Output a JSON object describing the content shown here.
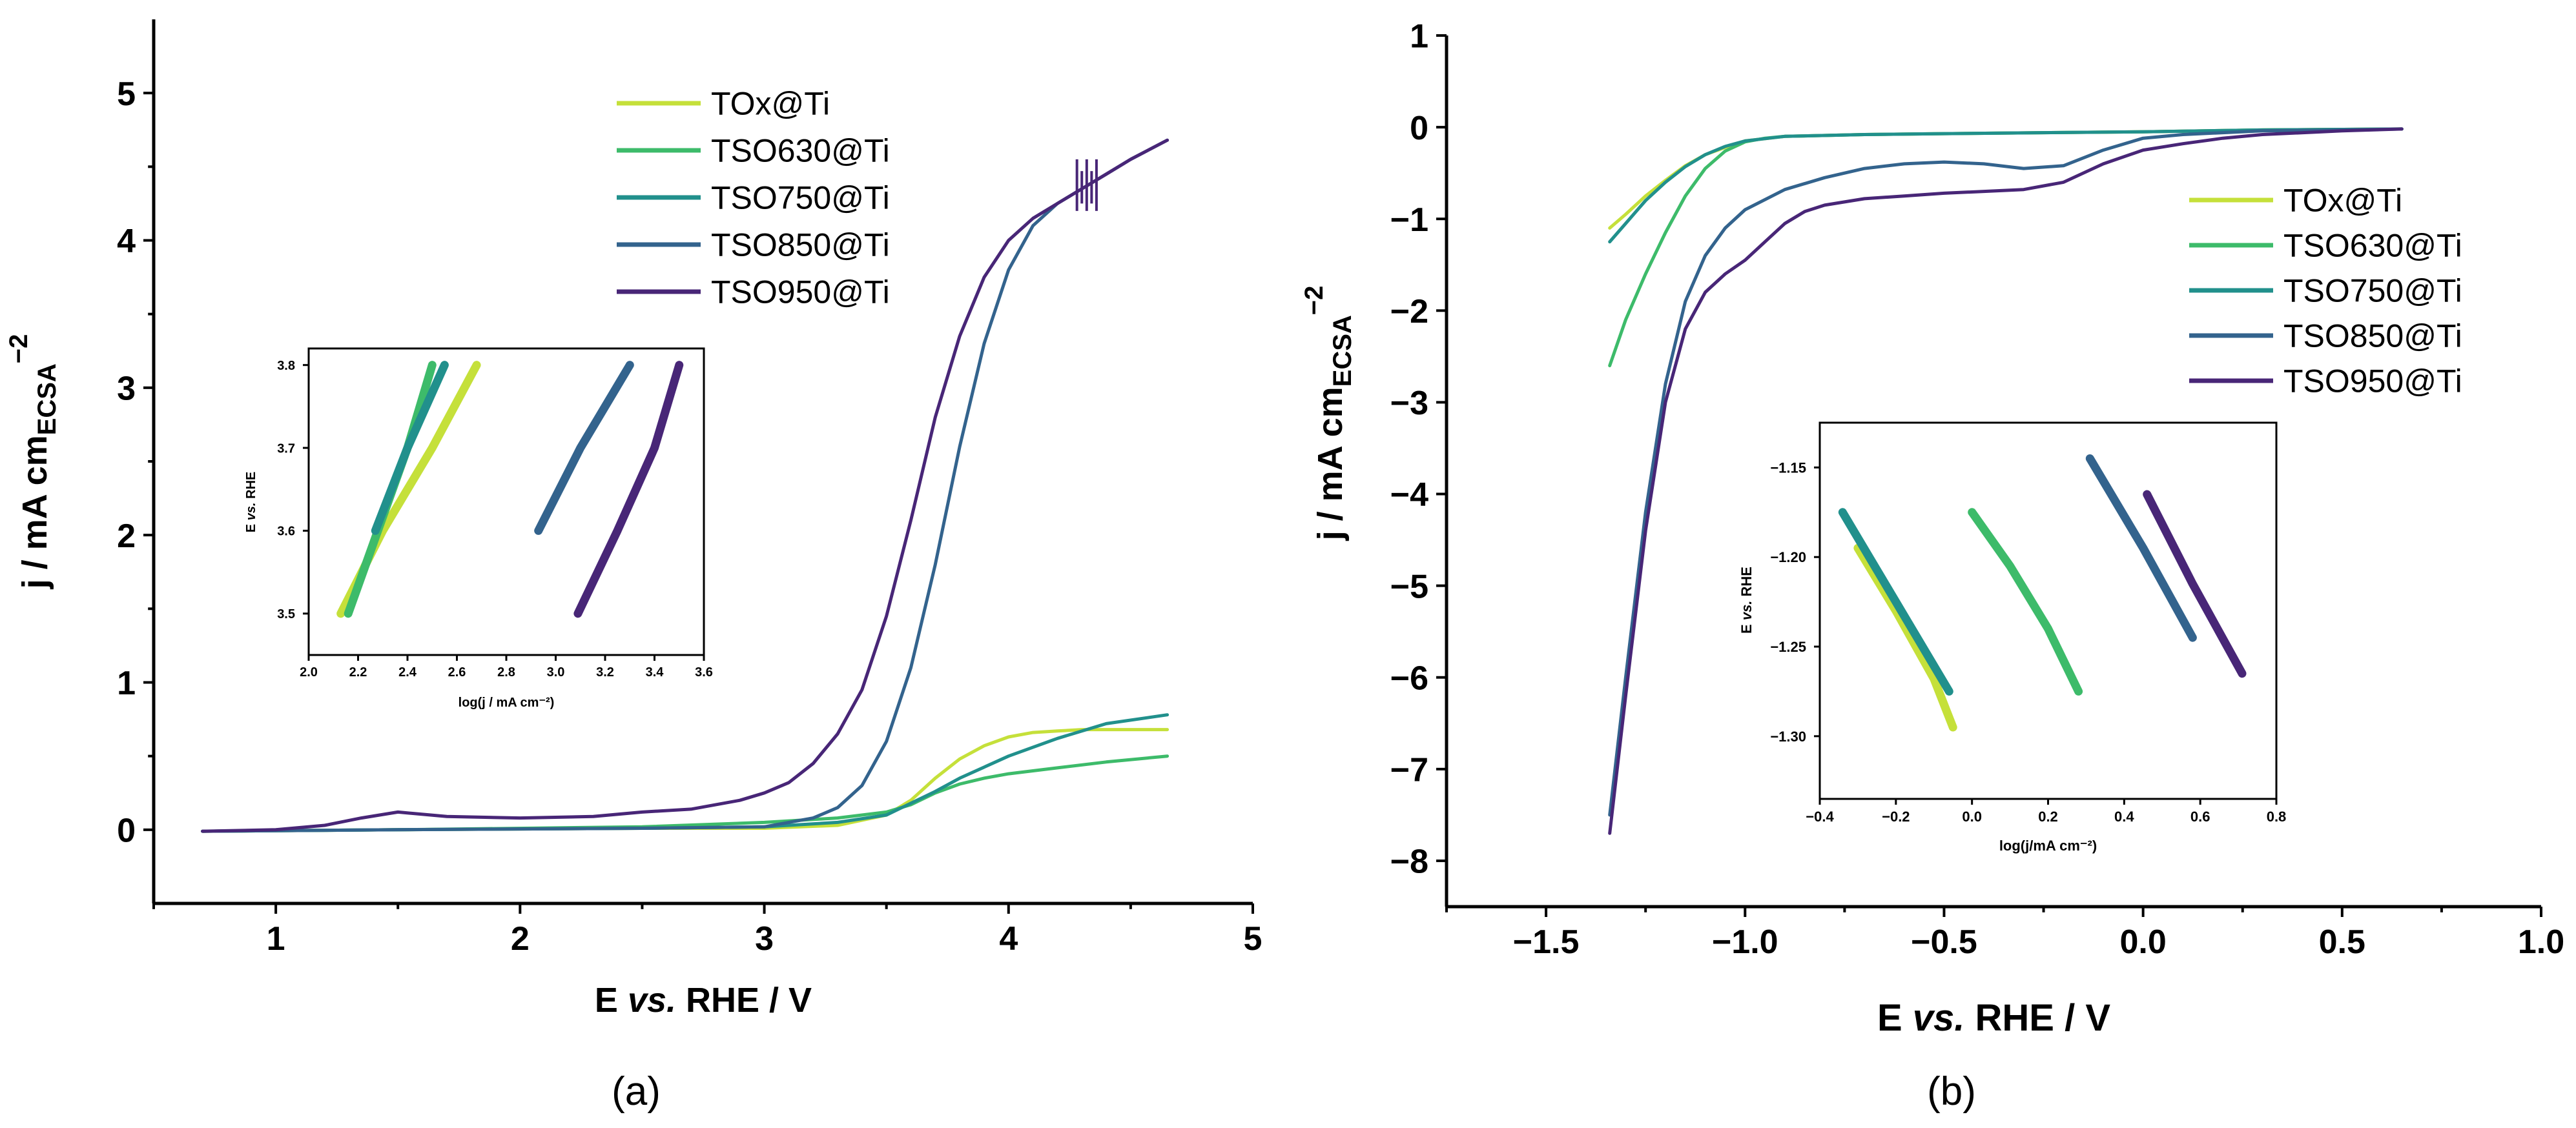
{
  "figure_labels": {
    "a": "(a)",
    "b": "(b)"
  },
  "colors": {
    "TOx@Ti": "#c5e03a",
    "TSO630@Ti": "#3dbb6a",
    "TSO750@Ti": "#21908c",
    "TSO850@Ti": "#33638d",
    "TSO950@Ti": "#482677"
  },
  "chart_data": [
    {
      "id": "panel-a-main",
      "type": "line",
      "title": "",
      "xlabel": "E vs. RHE / V",
      "ylabel": "j / mA cm_ECSA^-2",
      "xlim": [
        0.5,
        5
      ],
      "ylim": [
        -0.5,
        5.5
      ],
      "xticks": [
        1,
        2,
        3,
        4,
        5
      ],
      "yticks": [
        0,
        1,
        2,
        3,
        4,
        5
      ],
      "legend": "top-right",
      "series": [
        {
          "name": "TOx@Ti",
          "x": [
            0.7,
            1.5,
            2.5,
            3.0,
            3.3,
            3.5,
            3.6,
            3.7,
            3.8,
            3.9,
            4.0,
            4.1,
            4.2,
            4.3,
            4.65
          ],
          "y": [
            -0.01,
            0,
            0.01,
            0.01,
            0.03,
            0.1,
            0.2,
            0.35,
            0.48,
            0.57,
            0.63,
            0.66,
            0.67,
            0.68,
            0.68
          ]
        },
        {
          "name": "TSO630@Ti",
          "x": [
            0.7,
            1.5,
            2.5,
            3.0,
            3.3,
            3.5,
            3.6,
            3.7,
            3.8,
            3.9,
            4.0,
            4.2,
            4.4,
            4.65
          ],
          "y": [
            -0.01,
            0,
            0.02,
            0.05,
            0.08,
            0.12,
            0.17,
            0.25,
            0.31,
            0.35,
            0.38,
            0.42,
            0.46,
            0.5
          ]
        },
        {
          "name": "TSO750@Ti",
          "x": [
            0.7,
            1.5,
            2.5,
            3.0,
            3.3,
            3.5,
            3.6,
            3.7,
            3.8,
            4.0,
            4.2,
            4.4,
            4.65
          ],
          "y": [
            -0.01,
            0,
            0.01,
            0.02,
            0.05,
            0.1,
            0.18,
            0.26,
            0.35,
            0.5,
            0.62,
            0.72,
            0.78
          ]
        },
        {
          "name": "TSO850@Ti",
          "x": [
            0.7,
            1.5,
            2.5,
            3.0,
            3.2,
            3.3,
            3.4,
            3.5,
            3.6,
            3.7,
            3.8,
            3.9,
            4.0,
            4.1,
            4.2,
            4.3,
            4.4,
            4.5,
            4.65
          ],
          "y": [
            -0.01,
            0,
            0.01,
            0.02,
            0.08,
            0.15,
            0.3,
            0.6,
            1.1,
            1.8,
            2.6,
            3.3,
            3.8,
            4.1,
            4.25,
            4.35,
            4.45,
            4.55,
            4.68
          ]
        },
        {
          "name": "TSO950@Ti",
          "x": [
            0.7,
            1.0,
            1.2,
            1.35,
            1.5,
            1.7,
            2.0,
            2.3,
            2.5,
            2.7,
            2.9,
            3.0,
            3.1,
            3.2,
            3.3,
            3.4,
            3.5,
            3.6,
            3.7,
            3.8,
            3.9,
            4.0,
            4.1,
            4.2,
            4.3,
            4.4,
            4.5,
            4.65
          ],
          "y": [
            -0.01,
            0,
            0.03,
            0.08,
            0.12,
            0.09,
            0.08,
            0.09,
            0.12,
            0.14,
            0.2,
            0.25,
            0.32,
            0.45,
            0.65,
            0.95,
            1.45,
            2.1,
            2.8,
            3.35,
            3.75,
            4.0,
            4.15,
            4.25,
            4.35,
            4.45,
            4.55,
            4.68
          ]
        }
      ]
    },
    {
      "id": "panel-a-inset",
      "type": "line",
      "title": "",
      "xlabel": "log(j / mA cm⁻²)",
      "ylabel": "E vs. RHE",
      "xlim": [
        2.0,
        3.6
      ],
      "ylim": [
        3.45,
        3.82
      ],
      "xticks": [
        2.0,
        2.2,
        2.4,
        2.6,
        2.8,
        3.0,
        3.2,
        3.4,
        3.6
      ],
      "yticks": [
        3.5,
        3.6,
        3.7,
        3.8
      ],
      "series": [
        {
          "name": "TOx@Ti",
          "x": [
            2.13,
            2.3,
            2.5,
            2.68
          ],
          "y": [
            3.5,
            3.6,
            3.7,
            3.8
          ]
        },
        {
          "name": "TSO630@Ti",
          "x": [
            2.16,
            2.28,
            2.4,
            2.5
          ],
          "y": [
            3.5,
            3.6,
            3.7,
            3.8
          ]
        },
        {
          "name": "TSO750@Ti",
          "x": [
            2.27,
            2.4,
            2.55
          ],
          "y": [
            3.6,
            3.7,
            3.8
          ]
        },
        {
          "name": "TSO850@Ti",
          "x": [
            2.93,
            3.1,
            3.3
          ],
          "y": [
            3.6,
            3.7,
            3.8
          ]
        },
        {
          "name": "TSO950@Ti",
          "x": [
            3.09,
            3.25,
            3.4,
            3.5
          ],
          "y": [
            3.5,
            3.6,
            3.7,
            3.8
          ]
        }
      ]
    },
    {
      "id": "panel-b-main",
      "type": "line",
      "title": "",
      "xlabel": "E vs. RHE / V",
      "ylabel": "j / mA cm_ECSA^-2",
      "xlim": [
        -1.75,
        1.0
      ],
      "ylim": [
        -8.5,
        1
      ],
      "xticks": [
        -1.5,
        -1.0,
        -0.5,
        0.0,
        0.5,
        1.0
      ],
      "xticklabels": [
        "−1.5",
        "−1.0",
        "−0.5",
        "0.0",
        "0.5",
        "1.0"
      ],
      "yticks": [
        1,
        0,
        -1,
        -2,
        -3,
        -4,
        -5,
        -6,
        -7,
        -8
      ],
      "yticklabels": [
        "1",
        "0",
        "−1",
        "−2",
        "−3",
        "−4",
        "−5",
        "−6",
        "−7",
        "−8"
      ],
      "legend": "right",
      "series": [
        {
          "name": "TOx@Ti",
          "x": [
            -1.34,
            -1.3,
            -1.25,
            -1.2,
            -1.15,
            -1.1,
            -1.05,
            -1.0,
            -0.9,
            -0.7,
            -0.5,
            0,
            0.3,
            0.65
          ],
          "y": [
            -1.1,
            -0.95,
            -0.75,
            -0.58,
            -0.42,
            -0.3,
            -0.22,
            -0.15,
            -0.1,
            -0.08,
            -0.07,
            -0.05,
            -0.03,
            -0.02
          ]
        },
        {
          "name": "TSO630@Ti",
          "x": [
            -1.34,
            -1.3,
            -1.25,
            -1.2,
            -1.15,
            -1.1,
            -1.05,
            -1.0,
            -0.95,
            -0.9,
            -0.7,
            -0.5,
            0,
            0.3,
            0.65
          ],
          "y": [
            -2.6,
            -2.1,
            -1.6,
            -1.15,
            -0.75,
            -0.45,
            -0.26,
            -0.16,
            -0.12,
            -0.1,
            -0.08,
            -0.07,
            -0.05,
            -0.03,
            -0.02
          ]
        },
        {
          "name": "TSO750@Ti",
          "x": [
            -1.34,
            -1.3,
            -1.25,
            -1.2,
            -1.15,
            -1.1,
            -1.05,
            -1.0,
            -0.9,
            -0.7,
            -0.5,
            0,
            0.3,
            0.65
          ],
          "y": [
            -1.25,
            -1.05,
            -0.8,
            -0.6,
            -0.43,
            -0.3,
            -0.21,
            -0.15,
            -0.1,
            -0.08,
            -0.07,
            -0.05,
            -0.03,
            -0.02
          ]
        },
        {
          "name": "TSO850@Ti",
          "x": [
            -1.34,
            -1.3,
            -1.25,
            -1.2,
            -1.15,
            -1.1,
            -1.05,
            -1.0,
            -0.9,
            -0.8,
            -0.7,
            -0.6,
            -0.5,
            -0.4,
            -0.3,
            -0.2,
            -0.1,
            0,
            0.1,
            0.2,
            0.3,
            0.5,
            0.65
          ],
          "y": [
            -7.5,
            -6.0,
            -4.2,
            -2.8,
            -1.9,
            -1.4,
            -1.1,
            -0.9,
            -0.68,
            -0.55,
            -0.45,
            -0.4,
            -0.38,
            -0.4,
            -0.45,
            -0.42,
            -0.25,
            -0.12,
            -0.08,
            -0.06,
            -0.04,
            -0.03,
            -0.02
          ]
        },
        {
          "name": "TSO950@Ti",
          "x": [
            -1.34,
            -1.3,
            -1.25,
            -1.2,
            -1.15,
            -1.1,
            -1.05,
            -1.0,
            -0.95,
            -0.9,
            -0.85,
            -0.8,
            -0.7,
            -0.6,
            -0.5,
            -0.4,
            -0.3,
            -0.2,
            -0.1,
            0,
            0.1,
            0.2,
            0.3,
            0.5,
            0.65
          ],
          "y": [
            -7.7,
            -6.2,
            -4.4,
            -3.0,
            -2.2,
            -1.8,
            -1.6,
            -1.45,
            -1.25,
            -1.05,
            -0.92,
            -0.85,
            -0.78,
            -0.75,
            -0.72,
            -0.7,
            -0.68,
            -0.6,
            -0.4,
            -0.25,
            -0.18,
            -0.12,
            -0.08,
            -0.04,
            -0.02
          ]
        }
      ]
    },
    {
      "id": "panel-b-inset",
      "type": "line",
      "title": "",
      "xlabel": "log(j/mA cm⁻²)",
      "ylabel": "E vs. RHE",
      "xlim": [
        -0.4,
        0.8
      ],
      "ylim": [
        -1.335,
        -1.125
      ],
      "xticks": [
        -0.4,
        -0.2,
        0.0,
        0.2,
        0.4,
        0.6,
        0.8
      ],
      "yticks": [
        -1.15,
        -1.2,
        -1.25,
        -1.3
      ],
      "yticklabels": [
        "−1.15",
        "−1.20",
        "−1.25",
        "−1.30"
      ],
      "series": [
        {
          "name": "TOx@Ti",
          "x": [
            -0.3,
            -0.2,
            -0.1,
            -0.05
          ],
          "y": [
            -1.195,
            -1.23,
            -1.268,
            -1.295
          ]
        },
        {
          "name": "TSO750@Ti",
          "x": [
            -0.34,
            -0.2,
            -0.06
          ],
          "y": [
            -1.175,
            -1.225,
            -1.275
          ]
        },
        {
          "name": "TSO630@Ti",
          "x": [
            0.0,
            0.1,
            0.2,
            0.28
          ],
          "y": [
            -1.175,
            -1.205,
            -1.24,
            -1.275
          ]
        },
        {
          "name": "TSO850@Ti",
          "x": [
            0.31,
            0.45,
            0.58
          ],
          "y": [
            -1.145,
            -1.195,
            -1.245
          ]
        },
        {
          "name": "TSO950@Ti",
          "x": [
            0.46,
            0.58,
            0.71
          ],
          "y": [
            -1.165,
            -1.215,
            -1.265
          ]
        }
      ]
    }
  ]
}
